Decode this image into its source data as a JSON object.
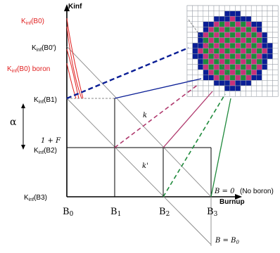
{
  "axes": {
    "y_title": "Kinf",
    "x_title": "Burnup"
  },
  "y_labels": {
    "b0": {
      "main": "K",
      "sub": "inf",
      "rest": "(B0)"
    },
    "b0_prime": {
      "main": "K",
      "sub": "inf",
      "rest": "(B0')"
    },
    "b0_boron": {
      "main": "K",
      "sub": "inf",
      "rest": "(B0) boron"
    },
    "b1": {
      "main": "K",
      "sub": "inf",
      "rest": "(B1)"
    },
    "b2": {
      "main": "K",
      "sub": "inf",
      "rest": "(B2)"
    },
    "b3": {
      "main": "K",
      "sub": "inf",
      "rest": "(B3)"
    }
  },
  "one_plus_f": "1 + F",
  "alpha": "α",
  "x_ticks": [
    {
      "main": "B",
      "sub": "0"
    },
    {
      "main": "B",
      "sub": "1"
    },
    {
      "main": "B",
      "sub": "2"
    },
    {
      "main": "B",
      "sub": "3"
    }
  ],
  "line_labels": {
    "k": "k",
    "k_prime": "k'",
    "b_zero": "B = 0",
    "no_boron": "(No boron)",
    "b_equals_b0": "B = B",
    "b_equals_b0_sub": "0"
  },
  "colors": {
    "lattice_blue": "#0a1e96",
    "lattice_green": "#1f8a3c",
    "lattice_magenta": "#c8327a",
    "lattice_grid": "#9aa0a8",
    "dash_blue": "#0a1e96",
    "dash_magenta": "#b03a6e",
    "dash_green": "#1f8a3c",
    "red_curve": "#e02020"
  }
}
